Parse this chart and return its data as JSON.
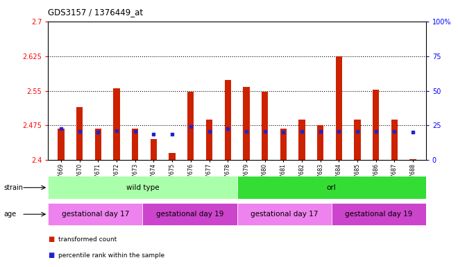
{
  "title": "GDS3157 / 1376449_at",
  "samples": [
    "GSM187669",
    "GSM187670",
    "GSM187671",
    "GSM187672",
    "GSM187673",
    "GSM187674",
    "GSM187675",
    "GSM187676",
    "GSM187677",
    "GSM187678",
    "GSM187679",
    "GSM187680",
    "GSM187681",
    "GSM187682",
    "GSM187683",
    "GSM187684",
    "GSM187685",
    "GSM187686",
    "GSM187687",
    "GSM187688"
  ],
  "red_values": [
    2.468,
    2.515,
    2.468,
    2.555,
    2.468,
    2.445,
    2.415,
    2.548,
    2.487,
    2.573,
    2.558,
    2.548,
    2.468,
    2.487,
    2.475,
    2.625,
    2.487,
    2.552,
    2.487,
    2.402
  ],
  "blue_values": [
    2.468,
    2.462,
    2.46,
    2.463,
    2.462,
    2.456,
    2.456,
    2.473,
    2.462,
    2.468,
    2.462,
    2.462,
    2.46,
    2.462,
    2.462,
    2.462,
    2.462,
    2.462,
    2.462,
    2.46
  ],
  "ylim_left": [
    2.4,
    2.7
  ],
  "ylim_right": [
    0,
    100
  ],
  "yticks_left": [
    2.4,
    2.475,
    2.55,
    2.625,
    2.7
  ],
  "ytick_labels_left": [
    "2.4",
    "2.475",
    "2.55",
    "2.625",
    "2.7"
  ],
  "yticks_right": [
    0,
    25,
    50,
    75,
    100
  ],
  "ytick_labels_right": [
    "0",
    "25",
    "50",
    "75",
    "100%"
  ],
  "hlines": [
    2.475,
    2.55,
    2.625
  ],
  "strain_groups": [
    {
      "label": "wild type",
      "start": 0,
      "end": 10,
      "color": "#aaffaa"
    },
    {
      "label": "orl",
      "start": 10,
      "end": 20,
      "color": "#33dd33"
    }
  ],
  "age_groups": [
    {
      "label": "gestational day 17",
      "start": 0,
      "end": 5,
      "color": "#ee82ee"
    },
    {
      "label": "gestational day 19",
      "start": 5,
      "end": 10,
      "color": "#cc44cc"
    },
    {
      "label": "gestational day 17",
      "start": 10,
      "end": 15,
      "color": "#ee82ee"
    },
    {
      "label": "gestational day 19",
      "start": 15,
      "end": 20,
      "color": "#cc44cc"
    }
  ],
  "bar_color": "#cc2200",
  "blue_color": "#2222cc",
  "base_value": 2.4,
  "background_color": "#ffffff",
  "plot_bg_color": "#ffffff"
}
